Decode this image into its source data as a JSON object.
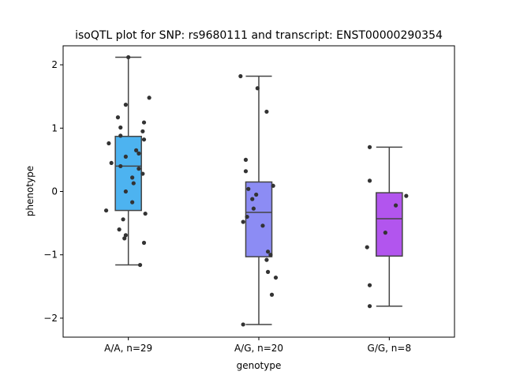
{
  "chart_data": {
    "type": "box",
    "title": "isoQTL plot for SNP: rs9680111 and transcript: ENST00000290354",
    "xlabel": "genotype",
    "ylabel": "phenotype",
    "ylim": [
      -2.3,
      2.3
    ],
    "yticks": [
      -2,
      -1,
      0,
      1,
      2
    ],
    "ytick_labels": [
      "−2",
      "−1",
      "0",
      "1",
      "2"
    ],
    "categories": [
      "A/A, n=29",
      "A/G, n=20",
      "G/G, n=8"
    ],
    "grid": false,
    "legend": "none",
    "colors": [
      "#4db3f0",
      "#8c8cf4",
      "#b255ee"
    ],
    "point_color": "#333333",
    "boxes": [
      {
        "q1": -0.3,
        "median": 0.4,
        "q3": 0.87,
        "whisker_low": -1.16,
        "whisker_high": 2.12
      },
      {
        "q1": -1.03,
        "median": -0.33,
        "q3": 0.15,
        "whisker_low": -2.1,
        "whisker_high": 1.82
      },
      {
        "q1": -1.02,
        "median": -0.43,
        "q3": -0.02,
        "whisker_low": -1.81,
        "whisker_high": 0.7
      }
    ],
    "points": [
      [
        2.12,
        1.48,
        1.37,
        1.17,
        1.09,
        1.01,
        0.95,
        0.88,
        0.82,
        0.76,
        0.65,
        0.6,
        0.55,
        0.45,
        0.4,
        0.36,
        0.28,
        0.22,
        0.13,
        0.0,
        -0.17,
        -0.3,
        -0.35,
        -0.44,
        -0.6,
        -0.69,
        -0.74,
        -0.81,
        -1.16
      ],
      [
        1.82,
        1.63,
        1.26,
        0.5,
        0.32,
        0.09,
        0.04,
        -0.05,
        -0.12,
        -0.27,
        -0.4,
        -0.48,
        -0.54,
        -0.95,
        -1.0,
        -1.08,
        -1.27,
        -1.36,
        -1.63,
        -2.1
      ],
      [
        0.7,
        0.17,
        -0.07,
        -0.22,
        -0.65,
        -0.88,
        -1.48,
        -1.81
      ]
    ],
    "jitter": [
      [
        0.0,
        0.16,
        -0.02,
        -0.08,
        0.12,
        -0.06,
        0.11,
        -0.06,
        0.12,
        -0.15,
        0.06,
        0.08,
        -0.02,
        -0.13,
        -0.06,
        0.08,
        0.11,
        0.03,
        0.04,
        -0.02,
        0.03,
        -0.17,
        0.13,
        -0.04,
        -0.07,
        -0.02,
        -0.03,
        0.12,
        0.09
      ],
      [
        -0.14,
        -0.01,
        0.06,
        -0.1,
        -0.1,
        0.11,
        -0.08,
        -0.02,
        -0.05,
        -0.04,
        -0.09,
        -0.12,
        0.03,
        0.07,
        0.09,
        0.06,
        0.07,
        0.13,
        0.1,
        -0.12
      ],
      [
        -0.15,
        -0.15,
        0.13,
        0.05,
        -0.03,
        -0.17,
        -0.15,
        -0.15
      ]
    ]
  }
}
